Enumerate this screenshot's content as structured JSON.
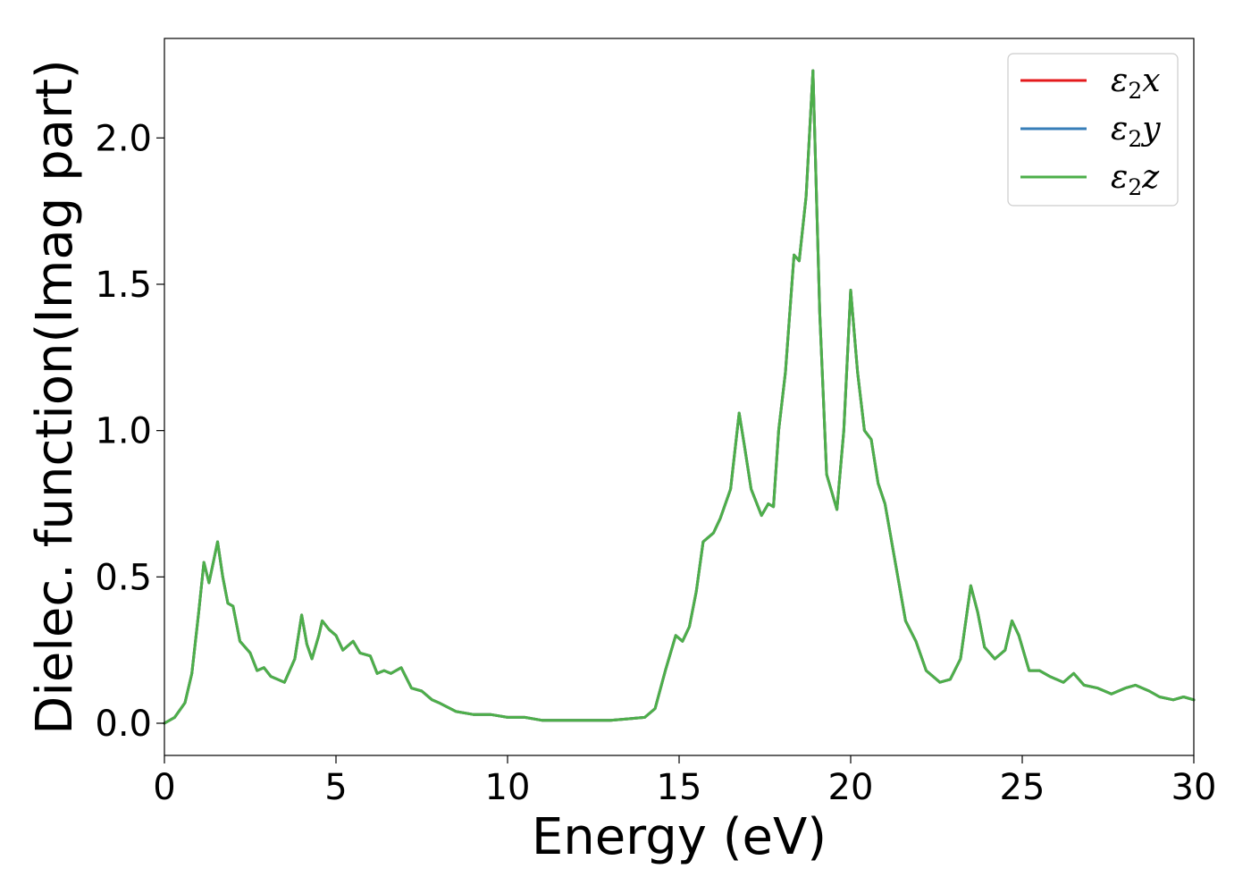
{
  "chart_data": {
    "type": "line",
    "xlabel": "Energy (eV)",
    "ylabel": "Dielec. function(Imag part)",
    "xlim": [
      0,
      30
    ],
    "ylim": [
      -0.11,
      2.34
    ],
    "xticks": [
      0,
      5,
      10,
      15,
      20,
      25,
      30
    ],
    "yticks": [
      0.0,
      0.5,
      1.0,
      1.5,
      2.0
    ],
    "xtick_labels": [
      "0",
      "5",
      "10",
      "15",
      "20",
      "25",
      "30"
    ],
    "ytick_labels": [
      "0.0",
      "0.5",
      "1.0",
      "1.5",
      "2.0"
    ],
    "legend_position": "top-right",
    "grid": false,
    "series": [
      {
        "name": "ε2x",
        "symbol": "ε",
        "sub": "2",
        "axis": "x",
        "color": "#e41a1c"
      },
      {
        "name": "ε2y",
        "symbol": "ε",
        "sub": "2",
        "axis": "y",
        "color": "#377eb8"
      },
      {
        "name": "ε2z",
        "symbol": "ε",
        "sub": "2",
        "axis": "z",
        "color": "#4daf4a"
      }
    ],
    "x": [
      0,
      0.3,
      0.6,
      0.8,
      1.0,
      1.15,
      1.3,
      1.55,
      1.7,
      1.85,
      2.0,
      2.2,
      2.5,
      2.7,
      2.9,
      3.1,
      3.5,
      3.8,
      4.0,
      4.15,
      4.3,
      4.5,
      4.6,
      4.8,
      5.0,
      5.2,
      5.5,
      5.7,
      6.0,
      6.2,
      6.4,
      6.6,
      6.9,
      7.2,
      7.5,
      7.8,
      8.0,
      8.5,
      9.0,
      9.5,
      10.0,
      10.5,
      11.0,
      11.5,
      12.0,
      12.5,
      13.0,
      13.5,
      14.0,
      14.3,
      14.6,
      14.9,
      15.1,
      15.3,
      15.5,
      15.7,
      16.0,
      16.2,
      16.5,
      16.75,
      16.9,
      17.1,
      17.4,
      17.6,
      17.75,
      17.9,
      18.1,
      18.35,
      18.5,
      18.7,
      18.9,
      19.1,
      19.3,
      19.6,
      19.8,
      20.0,
      20.2,
      20.4,
      20.6,
      20.8,
      21.0,
      21.3,
      21.6,
      21.9,
      22.2,
      22.6,
      22.9,
      23.2,
      23.5,
      23.7,
      23.9,
      24.2,
      24.5,
      24.7,
      24.9,
      25.2,
      25.5,
      25.8,
      26.2,
      26.5,
      26.8,
      27.2,
      27.6,
      28.0,
      28.3,
      28.7,
      29.0,
      29.4,
      29.7,
      30.0
    ],
    "values": [
      0,
      0.02,
      0.07,
      0.17,
      0.38,
      0.55,
      0.48,
      0.62,
      0.5,
      0.41,
      0.4,
      0.28,
      0.24,
      0.18,
      0.19,
      0.16,
      0.14,
      0.22,
      0.37,
      0.27,
      0.22,
      0.3,
      0.35,
      0.32,
      0.3,
      0.25,
      0.28,
      0.24,
      0.23,
      0.17,
      0.18,
      0.17,
      0.19,
      0.12,
      0.11,
      0.08,
      0.07,
      0.04,
      0.03,
      0.03,
      0.02,
      0.02,
      0.01,
      0.01,
      0.01,
      0.01,
      0.01,
      0.015,
      0.02,
      0.05,
      0.18,
      0.3,
      0.28,
      0.33,
      0.45,
      0.62,
      0.65,
      0.7,
      0.8,
      1.06,
      0.95,
      0.8,
      0.71,
      0.75,
      0.74,
      1.0,
      1.2,
      1.6,
      1.58,
      1.8,
      2.23,
      1.4,
      0.85,
      0.73,
      1.0,
      1.48,
      1.2,
      1.0,
      0.97,
      0.82,
      0.75,
      0.55,
      0.35,
      0.28,
      0.18,
      0.14,
      0.15,
      0.22,
      0.47,
      0.38,
      0.26,
      0.22,
      0.25,
      0.35,
      0.3,
      0.18,
      0.18,
      0.16,
      0.14,
      0.17,
      0.13,
      0.12,
      0.1,
      0.12,
      0.13,
      0.11,
      0.09,
      0.08,
      0.09,
      0.08
    ]
  }
}
